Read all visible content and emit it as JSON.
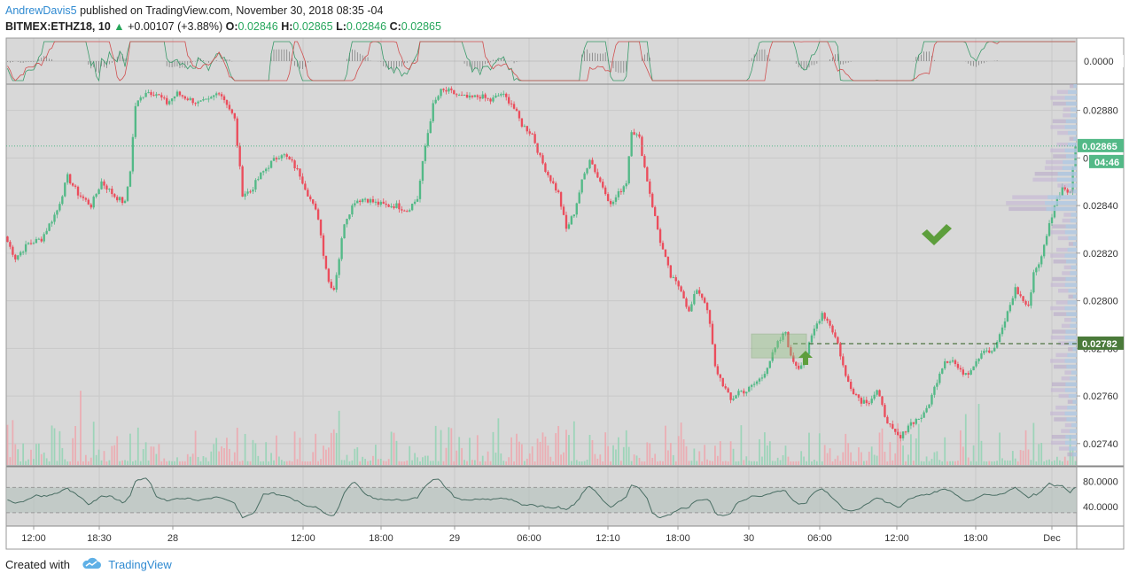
{
  "header": {
    "author": "AndrewDavis5",
    "published": " published on TradingView.com, November 30, 2018 08:35 -04"
  },
  "ohlc": {
    "symbol": "BITMEX:ETHZ18, 10",
    "change": "+0.00107 (+3.88%)",
    "o_label": "O:",
    "o": "0.02846",
    "h_label": "H:",
    "h": "0.02865",
    "l_label": "L:",
    "l": "0.02846",
    "c_label": "C:",
    "c": "0.02865"
  },
  "footer": {
    "created": "Created with",
    "brand": "TradingView"
  },
  "colors": {
    "up": "#53b987",
    "down": "#eb4d5c",
    "bg": "#d8d8d8",
    "grid": "#c8c8c8",
    "accent": "#2f8ad1",
    "price_tag": "#53b987",
    "level_tag": "#4a7a3a"
  },
  "chart_data": {
    "type": "candlestick",
    "symbol": "BITMEX:ETHZ18",
    "interval": "10",
    "price_axis_labels": [
      "0.02880",
      "0.02860",
      "0.02840",
      "0.02820",
      "0.02800",
      "0.02780",
      "0.02760",
      "0.02740"
    ],
    "price_ylim": [
      0.02731,
      0.02891
    ],
    "time_axis_labels": [
      "12:00",
      "18:30",
      "28",
      "12:00",
      "18:00",
      "29",
      "06:00",
      "12:10",
      "18:00",
      "30",
      "06:00",
      "12:00",
      "18:00",
      "Dec"
    ],
    "last_price": "0.02865",
    "countdown": "04:46",
    "level_price": "0.02782",
    "macd_axis_label": "0.0000",
    "rsi_axis_labels": [
      "80.0000",
      "40.0000"
    ],
    "rsi_band": [
      70,
      30
    ],
    "close_path": [
      [
        0,
        0.02827
      ],
      [
        4,
        0.02818
      ],
      [
        9,
        0.02824
      ],
      [
        14,
        0.02826
      ],
      [
        20,
        0.02838
      ],
      [
        24,
        0.02852
      ],
      [
        28,
        0.02845
      ],
      [
        33,
        0.0284
      ],
      [
        37,
        0.0285
      ],
      [
        42,
        0.02844
      ],
      [
        46,
        0.02841
      ],
      [
        48,
        0.02855
      ],
      [
        50,
        0.02882
      ],
      [
        54,
        0.02888
      ],
      [
        58,
        0.02887
      ],
      [
        62,
        0.02883
      ],
      [
        66,
        0.02887
      ],
      [
        70,
        0.02885
      ],
      [
        74,
        0.02883
      ],
      [
        78,
        0.02884
      ],
      [
        82,
        0.02888
      ],
      [
        85,
        0.02883
      ],
      [
        88,
        0.02876
      ],
      [
        91,
        0.02845
      ],
      [
        94,
        0.02846
      ],
      [
        98,
        0.02853
      ],
      [
        102,
        0.02858
      ],
      [
        106,
        0.02862
      ],
      [
        110,
        0.02858
      ],
      [
        113,
        0.02853
      ],
      [
        116,
        0.02845
      ],
      [
        118,
        0.0284
      ],
      [
        120,
        0.02835
      ],
      [
        122,
        0.0282
      ],
      [
        124,
        0.02808
      ],
      [
        126,
        0.02805
      ],
      [
        128,
        0.02818
      ],
      [
        130,
        0.02833
      ],
      [
        134,
        0.02842
      ],
      [
        138,
        0.02843
      ],
      [
        142,
        0.02841
      ],
      [
        146,
        0.0284
      ],
      [
        150,
        0.0284
      ],
      [
        154,
        0.02838
      ],
      [
        158,
        0.02843
      ],
      [
        161,
        0.02865
      ],
      [
        164,
        0.02882
      ],
      [
        167,
        0.02888
      ],
      [
        170,
        0.02888
      ],
      [
        174,
        0.02886
      ],
      [
        178,
        0.02885
      ],
      [
        182,
        0.02886
      ],
      [
        186,
        0.02884
      ],
      [
        190,
        0.02887
      ],
      [
        194,
        0.02883
      ],
      [
        198,
        0.02874
      ],
      [
        202,
        0.0287
      ],
      [
        205,
        0.0286
      ],
      [
        208,
        0.02853
      ],
      [
        212,
        0.02845
      ],
      [
        215,
        0.0283
      ],
      [
        218,
        0.02837
      ],
      [
        221,
        0.0285
      ],
      [
        224,
        0.0286
      ],
      [
        227,
        0.02852
      ],
      [
        230,
        0.02846
      ],
      [
        232,
        0.0284
      ],
      [
        235,
        0.02845
      ],
      [
        238,
        0.0285
      ],
      [
        240,
        0.02872
      ],
      [
        243,
        0.02868
      ],
      [
        245,
        0.02856
      ],
      [
        248,
        0.0284
      ],
      [
        251,
        0.02825
      ],
      [
        255,
        0.0281
      ],
      [
        259,
        0.02805
      ],
      [
        262,
        0.02795
      ],
      [
        265,
        0.02805
      ],
      [
        268,
        0.028
      ],
      [
        270,
        0.0279
      ],
      [
        272,
        0.02772
      ],
      [
        275,
        0.02765
      ],
      [
        278,
        0.02758
      ],
      [
        281,
        0.02762
      ],
      [
        284,
        0.02762
      ],
      [
        287,
        0.02765
      ],
      [
        290,
        0.02768
      ],
      [
        293,
        0.02775
      ],
      [
        296,
        0.02782
      ],
      [
        299,
        0.02787
      ],
      [
        301,
        0.02776
      ],
      [
        304,
        0.02772
      ],
      [
        307,
        0.02778
      ],
      [
        310,
        0.02788
      ],
      [
        313,
        0.02795
      ],
      [
        316,
        0.0279
      ],
      [
        319,
        0.02782
      ],
      [
        322,
        0.02768
      ],
      [
        325,
        0.02762
      ],
      [
        328,
        0.02758
      ],
      [
        331,
        0.02758
      ],
      [
        334,
        0.02762
      ],
      [
        337,
        0.02752
      ],
      [
        340,
        0.02745
      ],
      [
        343,
        0.02742
      ],
      [
        346,
        0.02748
      ],
      [
        349,
        0.0275
      ],
      [
        352,
        0.02752
      ],
      [
        355,
        0.0276
      ],
      [
        358,
        0.0277
      ],
      [
        360,
        0.02775
      ],
      [
        363,
        0.02775
      ],
      [
        366,
        0.0277
      ],
      [
        369,
        0.0277
      ],
      [
        372,
        0.02775
      ],
      [
        375,
        0.0278
      ],
      [
        378,
        0.02778
      ],
      [
        381,
        0.02785
      ],
      [
        384,
        0.02795
      ],
      [
        387,
        0.02805
      ],
      [
        390,
        0.028
      ],
      [
        392,
        0.02797
      ],
      [
        394,
        0.02812
      ],
      [
        397,
        0.02818
      ],
      [
        399,
        0.02828
      ],
      [
        402,
        0.0284
      ],
      [
        405,
        0.02848
      ],
      [
        408,
        0.02846
      ],
      [
        410,
        0.02865
      ]
    ],
    "total_bars": 410
  }
}
